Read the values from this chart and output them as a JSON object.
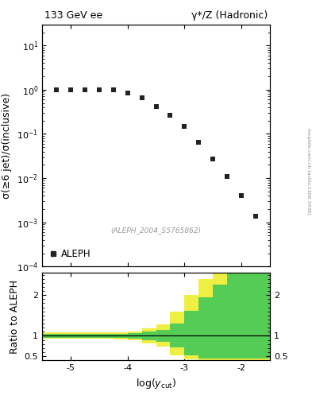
{
  "title_left": "133 GeV ee",
  "title_right": "γ*/Z (Hadronic)",
  "ylabel_main": "σ(≥6 jet)/σ(inclusive)",
  "ylabel_ratio": "Ratio to ALEPH",
  "xlabel": "log(y_{cut})",
  "watermark": "(ALEPH_2004_S5765862)",
  "side_label": "mcplots.cern.ch [arXiv:1306.3436]",
  "legend_label": "ALEPH",
  "data_x": [
    -5.25,
    -5.0,
    -4.75,
    -4.5,
    -4.25,
    -4.0,
    -3.75,
    -3.5,
    -3.25,
    -3.0,
    -2.75,
    -2.5,
    -2.25,
    -2.0,
    -1.75
  ],
  "data_y": [
    1.0,
    1.0,
    1.0,
    1.0,
    1.0,
    0.85,
    0.65,
    0.42,
    0.27,
    0.15,
    0.065,
    0.027,
    0.011,
    0.004,
    0.0014
  ],
  "xlim": [
    -5.5,
    -1.5
  ],
  "ylim_main": [
    0.0001,
    30
  ],
  "ylim_ratio": [
    0.4,
    2.55
  ],
  "xcut_band_edges": [
    -5.5,
    -5.25,
    -5.0,
    -4.75,
    -4.5,
    -4.25,
    -4.0,
    -3.75,
    -3.5,
    -3.25,
    -3.0,
    -2.75,
    -2.5,
    -2.25,
    -2.0,
    -1.75,
    -1.5
  ],
  "green_upper": [
    1.05,
    1.05,
    1.05,
    1.05,
    1.05,
    1.055,
    1.07,
    1.1,
    1.14,
    1.3,
    1.62,
    1.95,
    2.25,
    2.55,
    2.55,
    2.55
  ],
  "green_lower": [
    0.955,
    0.955,
    0.955,
    0.955,
    0.955,
    0.945,
    0.93,
    0.9,
    0.86,
    0.72,
    0.52,
    0.44,
    0.44,
    0.44,
    0.44,
    0.44
  ],
  "yellow_upper": [
    1.08,
    1.08,
    1.08,
    1.08,
    1.08,
    1.09,
    1.115,
    1.18,
    1.28,
    1.6,
    2.0,
    2.4,
    2.55,
    2.55,
    2.55,
    2.55
  ],
  "yellow_lower": [
    0.92,
    0.92,
    0.92,
    0.92,
    0.92,
    0.91,
    0.885,
    0.82,
    0.73,
    0.52,
    0.42,
    0.4,
    0.4,
    0.4,
    0.4,
    0.4
  ],
  "marker_color": "#222222",
  "green_color": "#55cc55",
  "yellow_color": "#eeee44",
  "bg_color": "#ffffff",
  "tick_label_size": 8,
  "axis_label_size": 9,
  "title_size": 9
}
